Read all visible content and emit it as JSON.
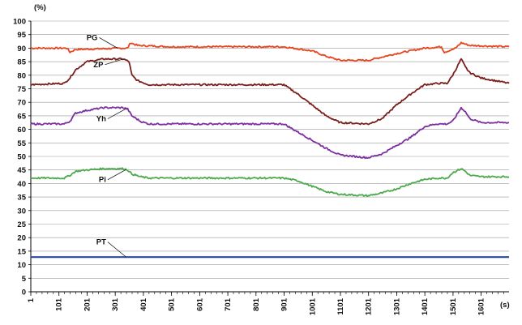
{
  "chart_data": {
    "type": "line",
    "ylabel": "(%)",
    "xlabel": "(s)",
    "ylim": [
      0,
      100
    ],
    "xlim": [
      1,
      1700
    ],
    "y_ticks": [
      0,
      5,
      10,
      15,
      20,
      25,
      30,
      35,
      40,
      45,
      50,
      55,
      60,
      65,
      70,
      75,
      80,
      85,
      90,
      95,
      100
    ],
    "x_ticks": [
      1,
      101,
      201,
      301,
      401,
      501,
      601,
      701,
      801,
      901,
      1001,
      1101,
      1201,
      1301,
      1401,
      1501,
      1601
    ],
    "grid": "horizontal",
    "series": [
      {
        "name": "PG",
        "color": "#e8441e",
        "points": [
          [
            1,
            90
          ],
          [
            130,
            90
          ],
          [
            140,
            88.5
          ],
          [
            160,
            89.5
          ],
          [
            330,
            90
          ],
          [
            345,
            90
          ],
          [
            355,
            92
          ],
          [
            380,
            91
          ],
          [
            500,
            90.5
          ],
          [
            900,
            90.5
          ],
          [
            1000,
            89
          ],
          [
            1050,
            87
          ],
          [
            1100,
            85.5
          ],
          [
            1200,
            85.5
          ],
          [
            1300,
            88
          ],
          [
            1400,
            90
          ],
          [
            1460,
            90.5
          ],
          [
            1470,
            88.5
          ],
          [
            1500,
            89.5
          ],
          [
            1510,
            90
          ],
          [
            1530,
            92
          ],
          [
            1560,
            91
          ],
          [
            1700,
            90.5
          ]
        ],
        "label_at": [
          250,
          93
        ]
      },
      {
        "name": "ZP",
        "color": "#7a1f1a",
        "points": [
          [
            1,
            76.5
          ],
          [
            120,
            77
          ],
          [
            140,
            79
          ],
          [
            160,
            82
          ],
          [
            200,
            85
          ],
          [
            260,
            86
          ],
          [
            330,
            86
          ],
          [
            350,
            85
          ],
          [
            360,
            80
          ],
          [
            380,
            78
          ],
          [
            420,
            76.5
          ],
          [
            900,
            76.5
          ],
          [
            950,
            73
          ],
          [
            1000,
            69
          ],
          [
            1050,
            65
          ],
          [
            1100,
            62.5
          ],
          [
            1200,
            62
          ],
          [
            1250,
            64
          ],
          [
            1300,
            69
          ],
          [
            1350,
            73
          ],
          [
            1400,
            76.5
          ],
          [
            1450,
            77
          ],
          [
            1480,
            77
          ],
          [
            1500,
            80
          ],
          [
            1530,
            86
          ],
          [
            1545,
            83
          ],
          [
            1560,
            81
          ],
          [
            1600,
            79
          ],
          [
            1700,
            77
          ]
        ],
        "label_at": [
          270,
          83
        ]
      },
      {
        "name": "Yh",
        "color": "#7c2f9e",
        "points": [
          [
            1,
            62
          ],
          [
            120,
            62
          ],
          [
            140,
            63
          ],
          [
            160,
            66
          ],
          [
            200,
            67
          ],
          [
            260,
            68
          ],
          [
            330,
            68
          ],
          [
            345,
            67.5
          ],
          [
            360,
            65
          ],
          [
            390,
            63
          ],
          [
            420,
            62
          ],
          [
            900,
            62
          ],
          [
            950,
            59
          ],
          [
            1000,
            56
          ],
          [
            1050,
            53
          ],
          [
            1100,
            50.5
          ],
          [
            1150,
            50
          ],
          [
            1200,
            49.5
          ],
          [
            1250,
            51
          ],
          [
            1300,
            54
          ],
          [
            1350,
            57
          ],
          [
            1400,
            61
          ],
          [
            1440,
            62
          ],
          [
            1480,
            62
          ],
          [
            1500,
            63
          ],
          [
            1530,
            68
          ],
          [
            1545,
            66.5
          ],
          [
            1560,
            64
          ],
          [
            1600,
            62.5
          ],
          [
            1700,
            62.5
          ]
        ],
        "label_at": [
          280,
          63
        ]
      },
      {
        "name": "Pi",
        "color": "#4caa4c",
        "points": [
          [
            1,
            42
          ],
          [
            120,
            42
          ],
          [
            140,
            43
          ],
          [
            160,
            44.5
          ],
          [
            200,
            45
          ],
          [
            260,
            45.5
          ],
          [
            330,
            45.5
          ],
          [
            345,
            45
          ],
          [
            360,
            43.5
          ],
          [
            390,
            42.5
          ],
          [
            420,
            42
          ],
          [
            900,
            42
          ],
          [
            950,
            41
          ],
          [
            1000,
            39
          ],
          [
            1050,
            37
          ],
          [
            1100,
            36
          ],
          [
            1200,
            35.5
          ],
          [
            1250,
            36.5
          ],
          [
            1300,
            38
          ],
          [
            1350,
            40
          ],
          [
            1400,
            41.5
          ],
          [
            1450,
            42
          ],
          [
            1480,
            42
          ],
          [
            1500,
            44
          ],
          [
            1530,
            45.5
          ],
          [
            1545,
            44.5
          ],
          [
            1560,
            43
          ],
          [
            1600,
            42.5
          ],
          [
            1700,
            42.5
          ]
        ],
        "label_at": [
          280,
          40.5
        ]
      },
      {
        "name": "PT",
        "color": "#2b4a9f",
        "points": [
          [
            1,
            12.8
          ],
          [
            1700,
            12.8
          ]
        ],
        "label_at": [
          280,
          17.5
        ]
      }
    ]
  }
}
